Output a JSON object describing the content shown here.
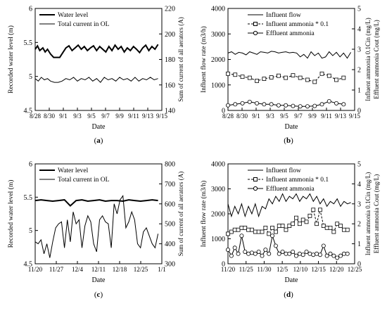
{
  "figure": {
    "panels": [
      {
        "id": "a",
        "letter": "a",
        "paren_left": "(",
        "paren_right": ")"
      },
      {
        "id": "b",
        "letter": "b",
        "paren_left": "(",
        "paren_right": ")"
      },
      {
        "id": "c",
        "letter": "c",
        "paren_left": "(",
        "paren_right": ")"
      },
      {
        "id": "d",
        "letter": "d",
        "paren_left": "(",
        "paren_right": ")"
      }
    ]
  },
  "chart_data": [
    {
      "id": "a",
      "type": "line",
      "xlabel": "Date",
      "ylabel_left": "Recorded water level (m)",
      "ylabel_right": "Sum of current of all aerators (A)",
      "x_ticks": [
        "8/28",
        "8/30",
        "9/1",
        "9/3",
        "9/5",
        "9/7",
        "9/9",
        "9/11",
        "9/13",
        "9/15"
      ],
      "ylim_left": [
        4.5,
        6
      ],
      "yticks_left": [
        "4.5",
        "5",
        "5.5",
        "6"
      ],
      "ylim_right": [
        140,
        220
      ],
      "yticks_right": [
        "140",
        "160",
        "180",
        "200",
        "220"
      ],
      "legend_position": "top-left",
      "series": [
        {
          "name": "Water level",
          "axis": "left",
          "style": "thick",
          "x": [
            0,
            0.3,
            0.6,
            1,
            1.3,
            1.6,
            2,
            2.4,
            2.8,
            3.2,
            3.6,
            4,
            4.4,
            4.8,
            5.2,
            5.6,
            6,
            6.4,
            6.8,
            7.2,
            7.6,
            8,
            8.4,
            8.8,
            9.2,
            9.6,
            10,
            10.4,
            10.8,
            11.2,
            11.6,
            12,
            12.4,
            12.8,
            13.2,
            13.6,
            14,
            14.4,
            14.8,
            15.2,
            15.6,
            16
          ],
          "y": [
            5.4,
            5.45,
            5.38,
            5.42,
            5.36,
            5.4,
            5.33,
            5.28,
            5.28,
            5.28,
            5.35,
            5.42,
            5.45,
            5.38,
            5.42,
            5.46,
            5.4,
            5.44,
            5.38,
            5.42,
            5.45,
            5.38,
            5.44,
            5.4,
            5.36,
            5.44,
            5.38,
            5.46,
            5.4,
            5.44,
            5.36,
            5.42,
            5.38,
            5.44,
            5.4,
            5.35,
            5.42,
            5.46,
            5.38,
            5.44,
            5.4,
            5.47
          ]
        },
        {
          "name": "Total current in OL",
          "axis": "right",
          "style": "thin",
          "x": [
            0,
            0.4,
            0.8,
            1.2,
            1.6,
            2,
            2.5,
            3,
            3.5,
            4,
            4.5,
            5,
            5.5,
            6,
            6.5,
            7,
            7.5,
            8,
            8.5,
            9,
            9.5,
            10,
            10.5,
            11,
            11.5,
            12,
            12.5,
            13,
            13.5,
            14,
            14.5,
            15,
            15.5,
            16
          ],
          "y": [
            165,
            163,
            166,
            164,
            165,
            163,
            162,
            162,
            163,
            165,
            164,
            166,
            163,
            165,
            164,
            166,
            163,
            165,
            162,
            166,
            164,
            165,
            163,
            166,
            164,
            165,
            163,
            166,
            163,
            165,
            164,
            166,
            164,
            165
          ]
        }
      ]
    },
    {
      "id": "b",
      "type": "line",
      "xlabel": "Date",
      "ylabel_left": "Influent flow rate (m3/h)",
      "ylabel_right": "Influent ammonia 0.1Cin (mg/L) Effluent ammonia Cout (mg/L)",
      "x_ticks": [
        "8/28",
        "8/30",
        "9/1",
        "9/3",
        "9/5",
        "9/7",
        "9/9",
        "9/11",
        "9/13",
        "9/15"
      ],
      "ylim_left": [
        0,
        4000
      ],
      "yticks_left": [
        "0",
        "1000",
        "2000",
        "3000",
        "4000"
      ],
      "ylim_right": [
        0,
        5
      ],
      "yticks_right": [
        "0",
        "1",
        "2",
        "3",
        "4",
        "5"
      ],
      "legend_position": "top-center",
      "series": [
        {
          "name": "Influent flow",
          "axis": "left",
          "style": "thin",
          "x": [
            0,
            0.5,
            1,
            1.5,
            2,
            2.5,
            3,
            3.5,
            4,
            4.5,
            5,
            5.5,
            6,
            6.5,
            7,
            7.5,
            8,
            8.5,
            9,
            9.5,
            10,
            10.5,
            11,
            11.5,
            12,
            12.5,
            13,
            13.5,
            14,
            14.5,
            15,
            15.5,
            16,
            16.5,
            17
          ],
          "y": [
            2250,
            2300,
            2200,
            2280,
            2250,
            2180,
            2300,
            2250,
            2200,
            2300,
            2280,
            2250,
            2320,
            2300,
            2250,
            2280,
            2300,
            2260,
            2280,
            2250,
            2100,
            2200,
            2050,
            2300,
            2150,
            2250,
            2050,
            2100,
            2300,
            2150,
            2280,
            2100,
            2250,
            2050,
            2280
          ]
        },
        {
          "name": "Influent ammonia * 0.1",
          "axis": "right",
          "style": "dashed-square",
          "x": [
            0,
            1,
            2,
            3,
            4,
            5,
            6,
            7,
            8,
            9,
            10,
            11,
            12,
            13,
            14,
            15,
            16
          ],
          "y": [
            1.8,
            1.75,
            1.65,
            1.6,
            1.45,
            1.55,
            1.62,
            1.7,
            1.6,
            1.72,
            1.6,
            1.5,
            1.4,
            1.8,
            1.7,
            1.5,
            1.6
          ]
        },
        {
          "name": "Effluent ammonia",
          "axis": "right",
          "style": "solid-circle",
          "x": [
            0,
            1,
            2,
            3,
            4,
            5,
            6,
            7,
            8,
            9,
            10,
            11,
            12,
            13,
            14,
            15,
            16
          ],
          "y": [
            0.25,
            0.3,
            0.35,
            0.42,
            0.35,
            0.3,
            0.3,
            0.25,
            0.25,
            0.22,
            0.2,
            0.2,
            0.22,
            0.3,
            0.45,
            0.35,
            0.3
          ]
        }
      ]
    },
    {
      "id": "c",
      "type": "line",
      "xlabel": "Date",
      "ylabel_left": "Recorded water level (m)",
      "ylabel_right": "Sum of current of all aerators (A)",
      "x_ticks": [
        "11/20",
        "11/27",
        "12/4",
        "12/11",
        "12/18",
        "12/25",
        "1/1"
      ],
      "ylim_left": [
        4.5,
        6
      ],
      "yticks_left": [
        "4.5",
        "5",
        "5.5",
        "6"
      ],
      "ylim_right": [
        300,
        800
      ],
      "yticks_right": [
        "300",
        "400",
        "500",
        "600",
        "700",
        "800"
      ],
      "legend_position": "top-left",
      "series": [
        {
          "name": "Water level",
          "axis": "left",
          "style": "thick",
          "x": [
            0,
            2,
            4,
            6,
            8,
            10,
            12,
            14,
            16,
            18,
            20,
            22,
            24,
            26,
            28,
            30,
            32,
            34,
            36,
            38,
            40,
            42
          ],
          "y": [
            5.45,
            5.46,
            5.45,
            5.44,
            5.45,
            5.46,
            5.37,
            5.45,
            5.46,
            5.44,
            5.45,
            5.46,
            5.44,
            5.45,
            5.45,
            5.44,
            5.46,
            5.45,
            5.44,
            5.45,
            5.46,
            5.45
          ]
        },
        {
          "name": "Total current in OL",
          "axis": "right",
          "style": "thin",
          "x": [
            0,
            1,
            2,
            3,
            4,
            5,
            6,
            7,
            8,
            9,
            10,
            11,
            12,
            13,
            14,
            15,
            16,
            17,
            18,
            19,
            20,
            21,
            22,
            23,
            24,
            25,
            26,
            27,
            28,
            29,
            30,
            31,
            32,
            33,
            34,
            35,
            36,
            37,
            38,
            39,
            40,
            41,
            42
          ],
          "y": [
            410,
            400,
            420,
            350,
            400,
            330,
            410,
            480,
            500,
            510,
            380,
            520,
            410,
            560,
            500,
            520,
            380,
            490,
            540,
            510,
            400,
            360,
            520,
            540,
            510,
            500,
            380,
            600,
            550,
            620,
            640,
            480,
            510,
            560,
            520,
            400,
            380,
            460,
            480,
            440,
            400,
            380,
            450
          ]
        }
      ]
    },
    {
      "id": "d",
      "type": "line",
      "xlabel": "Date",
      "ylabel_left": "Influent flow rate (m3/h)",
      "ylabel_right": "Influent ammonia 0.1Cin (mg/L) Effluent ammonia Cout (mg/L)",
      "x_ticks": [
        "11/20",
        "11/25",
        "11/30",
        "12/5",
        "12/10",
        "12/15",
        "12/20",
        "12/25"
      ],
      "ylim_left": [
        0,
        4000
      ],
      "yticks_left": [
        "0",
        "1000",
        "2000",
        "3000",
        "4000"
      ],
      "ylim_right": [
        0,
        5
      ],
      "yticks_right": [
        "0",
        "1",
        "2",
        "3",
        "4",
        "5"
      ],
      "legend_position": "top-center",
      "series": [
        {
          "name": "Influent flow",
          "axis": "left",
          "style": "thin",
          "x": [
            0,
            1,
            2,
            3,
            4,
            5,
            6,
            7,
            8,
            9,
            10,
            11,
            12,
            13,
            14,
            15,
            16,
            17,
            18,
            19,
            20,
            21,
            22,
            23,
            24,
            25,
            26,
            27,
            28,
            29,
            30,
            31,
            32,
            33,
            34,
            35,
            36
          ],
          "y": [
            2400,
            1900,
            2300,
            2000,
            2400,
            1900,
            2300,
            2000,
            2400,
            1900,
            2300,
            2200,
            2600,
            2400,
            2700,
            2500,
            2800,
            2500,
            2700,
            2600,
            2800,
            2500,
            2700,
            2600,
            2800,
            2500,
            2700,
            2400,
            2600,
            2300,
            2500,
            2400,
            2600,
            2300,
            2500,
            2400,
            2450
          ]
        },
        {
          "name": "Influent ammonia * 0.1",
          "axis": "right",
          "style": "dashed-square",
          "x": [
            0,
            1,
            2,
            3,
            4,
            5,
            6,
            7,
            8,
            9,
            10,
            11,
            12,
            13,
            14,
            15,
            16,
            17,
            18,
            19,
            20,
            21,
            22,
            23,
            24,
            25,
            26,
            27,
            28,
            29,
            30,
            31,
            32,
            33,
            34,
            35
          ],
          "y": [
            1.5,
            1.6,
            1.7,
            1.7,
            1.8,
            1.8,
            1.7,
            1.7,
            1.6,
            1.6,
            1.6,
            1.8,
            1.5,
            1.8,
            1.6,
            1.9,
            1.9,
            1.7,
            1.9,
            2.0,
            2.3,
            2.0,
            2.2,
            2.1,
            2.4,
            2.7,
            2.0,
            2.7,
            1.9,
            1.8,
            1.8,
            1.6,
            2.0,
            1.9,
            1.7,
            1.7
          ]
        },
        {
          "name": "Effluent ammonia",
          "axis": "right",
          "style": "solid-circle",
          "x": [
            0,
            1,
            2,
            3,
            4,
            5,
            6,
            7,
            8,
            9,
            10,
            11,
            12,
            13,
            14,
            15,
            16,
            17,
            18,
            19,
            20,
            21,
            22,
            23,
            24,
            25,
            26,
            27,
            28,
            29,
            30,
            31,
            32,
            33,
            34,
            35
          ],
          "y": [
            0.7,
            0.4,
            0.8,
            0.5,
            1.4,
            0.6,
            0.5,
            0.55,
            0.5,
            0.6,
            0.4,
            0.7,
            0.5,
            1.4,
            0.9,
            0.5,
            0.6,
            0.5,
            0.5,
            0.6,
            0.4,
            0.5,
            0.45,
            0.6,
            0.5,
            0.45,
            0.5,
            0.45,
            0.9,
            0.4,
            0.5,
            0.4,
            0.3,
            0.4,
            0.5,
            0.5
          ]
        }
      ]
    }
  ]
}
